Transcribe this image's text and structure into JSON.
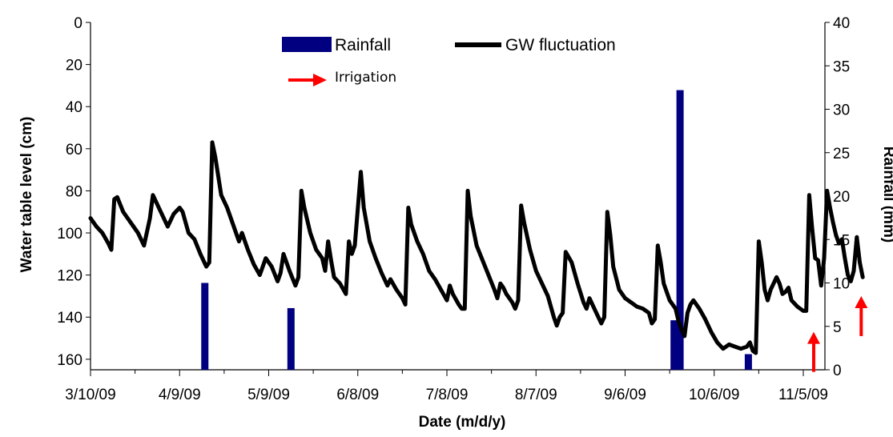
{
  "chart_data": {
    "type": "bar+line",
    "xlabel": "Date (m/d/y)",
    "ylabel_left": "Water table level (cm)",
    "ylabel_right": "Rainfall (mm)",
    "x_ticks": [
      "3/10/09",
      "4/9/09",
      "5/9/09",
      "6/8/09",
      "7/8/09",
      "8/7/09",
      "9/6/09",
      "10/6/09",
      "11/5/09"
    ],
    "x_range_days": [
      0,
      246
    ],
    "y_left": {
      "ticks": [
        0,
        20,
        40,
        60,
        80,
        100,
        120,
        140,
        160
      ],
      "range": [
        0,
        165
      ],
      "inverted": true
    },
    "y_right": {
      "ticks": [
        0,
        5,
        10,
        15,
        20,
        25,
        30,
        35,
        40
      ],
      "range": [
        0,
        40
      ]
    },
    "legend": {
      "rainfall": "Rainfall",
      "gw": "GW fluctuation",
      "irrigation": "Irrigation",
      "placement": "top-center"
    },
    "colors": {
      "rainfall": "#000080",
      "gw": "#000000",
      "irrigation": "#ff0000"
    },
    "rainfall_series": {
      "name": "Rainfall",
      "points": [
        {
          "day": 38.5,
          "mm": 10.0
        },
        {
          "day": 67.5,
          "mm": 7.1
        },
        {
          "day": 196.5,
          "mm": 5.7
        },
        {
          "day": 198.5,
          "mm": 32.2
        },
        {
          "day": 221.5,
          "mm": 1.8
        }
      ]
    },
    "gw_series": {
      "name": "GW fluctuation",
      "points": [
        [
          0,
          93
        ],
        [
          2,
          97
        ],
        [
          4,
          100
        ],
        [
          6,
          105
        ],
        [
          7,
          108
        ],
        [
          8,
          84
        ],
        [
          9,
          83
        ],
        [
          11,
          90
        ],
        [
          12,
          92
        ],
        [
          14,
          96
        ],
        [
          16,
          100
        ],
        [
          18,
          106
        ],
        [
          20,
          93
        ],
        [
          21,
          82
        ],
        [
          23,
          88
        ],
        [
          26,
          97
        ],
        [
          28,
          91
        ],
        [
          30,
          88
        ],
        [
          31,
          90
        ],
        [
          33,
          100
        ],
        [
          35,
          103
        ],
        [
          37,
          110
        ],
        [
          39,
          116
        ],
        [
          40,
          114
        ],
        [
          41,
          57
        ],
        [
          42,
          64
        ],
        [
          44,
          82
        ],
        [
          46,
          88
        ],
        [
          48,
          96
        ],
        [
          50,
          104
        ],
        [
          51,
          100
        ],
        [
          53,
          108
        ],
        [
          55,
          115
        ],
        [
          57,
          120
        ],
        [
          59,
          112
        ],
        [
          61,
          116
        ],
        [
          63,
          123
        ],
        [
          64,
          119
        ],
        [
          65,
          110
        ],
        [
          67,
          118
        ],
        [
          69,
          125
        ],
        [
          70,
          121
        ],
        [
          71,
          80
        ],
        [
          72,
          88
        ],
        [
          74,
          100
        ],
        [
          76,
          108
        ],
        [
          78,
          112
        ],
        [
          79,
          118
        ],
        [
          80,
          104
        ],
        [
          81,
          113
        ],
        [
          82,
          121
        ],
        [
          84,
          124
        ],
        [
          86,
          129
        ],
        [
          87,
          104
        ],
        [
          88,
          110
        ],
        [
          89,
          106
        ],
        [
          91,
          71
        ],
        [
          92,
          88
        ],
        [
          94,
          104
        ],
        [
          96,
          112
        ],
        [
          98,
          119
        ],
        [
          100,
          125
        ],
        [
          101,
          122
        ],
        [
          103,
          127
        ],
        [
          105,
          131
        ],
        [
          106,
          134
        ],
        [
          107,
          88
        ],
        [
          108,
          96
        ],
        [
          110,
          104
        ],
        [
          112,
          110
        ],
        [
          114,
          118
        ],
        [
          116,
          122
        ],
        [
          118,
          127
        ],
        [
          120,
          132
        ],
        [
          121,
          125
        ],
        [
          122,
          129
        ],
        [
          124,
          134
        ],
        [
          125,
          136
        ],
        [
          126,
          136
        ],
        [
          127,
          80
        ],
        [
          128,
          92
        ],
        [
          130,
          106
        ],
        [
          132,
          113
        ],
        [
          134,
          120
        ],
        [
          136,
          127
        ],
        [
          137,
          131
        ],
        [
          138,
          124
        ],
        [
          139,
          126
        ],
        [
          140,
          129
        ],
        [
          142,
          133
        ],
        [
          143,
          136
        ],
        [
          144,
          132
        ],
        [
          145,
          87
        ],
        [
          146,
          95
        ],
        [
          148,
          108
        ],
        [
          150,
          118
        ],
        [
          152,
          124
        ],
        [
          154,
          130
        ],
        [
          155,
          135
        ],
        [
          156,
          140
        ],
        [
          157,
          144
        ],
        [
          158,
          140
        ],
        [
          159,
          138
        ],
        [
          160,
          109
        ],
        [
          162,
          114
        ],
        [
          164,
          124
        ],
        [
          166,
          133
        ],
        [
          167,
          136
        ],
        [
          168,
          131
        ],
        [
          170,
          137
        ],
        [
          172,
          143
        ],
        [
          173,
          140
        ],
        [
          174,
          90
        ],
        [
          175,
          101
        ],
        [
          176,
          116
        ],
        [
          178,
          127
        ],
        [
          180,
          131
        ],
        [
          182,
          133
        ],
        [
          184,
          135
        ],
        [
          186,
          136
        ],
        [
          188,
          138
        ],
        [
          189,
          143
        ],
        [
          190,
          141
        ],
        [
          191,
          106
        ],
        [
          192,
          114
        ],
        [
          193,
          124
        ],
        [
          195,
          132
        ],
        [
          197,
          136
        ],
        [
          198,
          142
        ],
        [
          199,
          146
        ],
        [
          200,
          149
        ],
        [
          201,
          138
        ],
        [
          202,
          134
        ],
        [
          203,
          132
        ],
        [
          205,
          136
        ],
        [
          207,
          141
        ],
        [
          209,
          147
        ],
        [
          211,
          152
        ],
        [
          213,
          155
        ],
        [
          215,
          153
        ],
        [
          217,
          154
        ],
        [
          219,
          155
        ],
        [
          221,
          154
        ],
        [
          222,
          152
        ],
        [
          223,
          156
        ],
        [
          224,
          157
        ],
        [
          225,
          104
        ],
        [
          226,
          114
        ],
        [
          227,
          127
        ],
        [
          228,
          132
        ],
        [
          229,
          127
        ],
        [
          230,
          124
        ],
        [
          231,
          121
        ],
        [
          232,
          124
        ],
        [
          233,
          129
        ],
        [
          234,
          128
        ],
        [
          235,
          126
        ],
        [
          236,
          132
        ],
        [
          238,
          135
        ],
        [
          240,
          137
        ],
        [
          241,
          137
        ],
        [
          242,
          82
        ],
        [
          243,
          98
        ],
        [
          244,
          112
        ],
        [
          245,
          113
        ],
        [
          246,
          125
        ],
        [
          247,
          112
        ],
        [
          248,
          80
        ],
        [
          249,
          88
        ],
        [
          250,
          95
        ],
        [
          251,
          101
        ],
        [
          252,
          105
        ],
        [
          253,
          103
        ],
        [
          254,
          112
        ],
        [
          255,
          120
        ],
        [
          256,
          123
        ],
        [
          257,
          118
        ],
        [
          258,
          102
        ],
        [
          259,
          114
        ],
        [
          260,
          121
        ]
      ]
    },
    "irrigation_arrows": [
      {
        "day": 243.5,
        "cm": 147
      },
      {
        "day": 259.5,
        "cm": 130
      }
    ]
  }
}
